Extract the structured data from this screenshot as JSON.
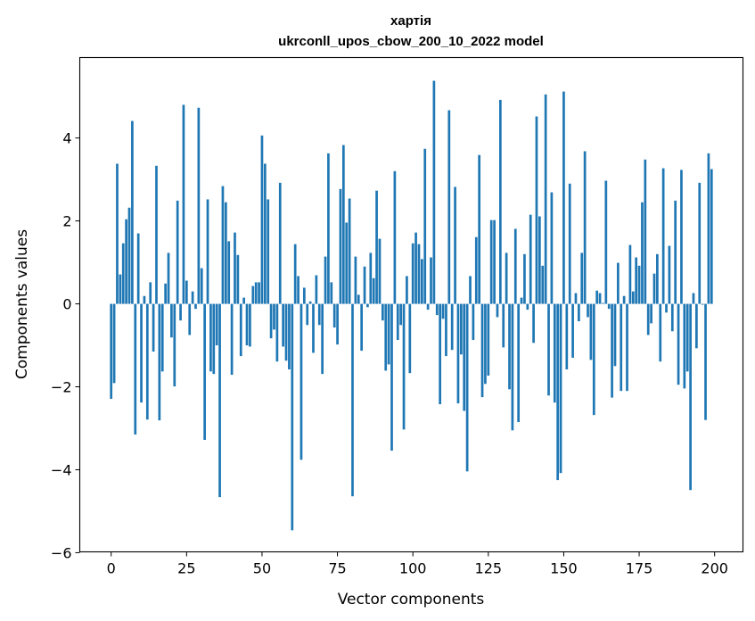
{
  "chart_data": {
    "type": "bar",
    "title": "хартія",
    "subtitle": "ukrconll_upos_cbow_200_10_2022 model",
    "xlabel": "Vector components",
    "ylabel": "Components values",
    "xlim": [
      -10.4,
      209.4
    ],
    "ylim": [
      -5.98,
      5.94
    ],
    "xticks": [
      0,
      25,
      50,
      75,
      100,
      125,
      150,
      175,
      200
    ],
    "yticks": [
      -6,
      -4,
      -2,
      0,
      2,
      4
    ],
    "xtick_labels": [
      "0",
      "25",
      "50",
      "75",
      "100",
      "125",
      "150",
      "175",
      "200"
    ],
    "ytick_labels": [
      "−6",
      "−4",
      "−2",
      "0",
      "2",
      "4"
    ],
    "grid": false,
    "bar_color": "#1f77b4",
    "values": [
      -2.29,
      -1.91,
      3.38,
      0.71,
      1.46,
      2.04,
      2.32,
      4.41,
      -3.15,
      1.7,
      -2.38,
      0.19,
      -2.79,
      0.52,
      -1.15,
      3.33,
      -2.81,
      -1.63,
      0.49,
      1.23,
      -0.81,
      -1.99,
      2.49,
      -0.4,
      4.8,
      0.56,
      -0.75,
      0.3,
      -0.12,
      4.73,
      0.86,
      -3.28,
      2.52,
      -1.63,
      -1.69,
      -1.0,
      -4.66,
      2.84,
      2.45,
      1.51,
      -1.71,
      1.72,
      1.18,
      -1.26,
      0.15,
      -1.0,
      -1.03,
      0.43,
      0.52,
      0.52,
      4.06,
      3.38,
      2.52,
      -0.83,
      -0.62,
      -1.39,
      2.92,
      -1.03,
      -1.37,
      -1.58,
      -5.46,
      1.44,
      0.67,
      -3.76,
      0.39,
      -0.51,
      0.06,
      -1.18,
      0.69,
      -0.51,
      -1.69,
      1.14,
      3.63,
      0.52,
      -0.57,
      -0.98,
      2.77,
      3.83,
      1.96,
      2.54,
      -4.64,
      1.14,
      0.22,
      -1.13,
      0.9,
      -0.08,
      1.23,
      0.62,
      2.73,
      1.57,
      -0.4,
      -1.61,
      -1.46,
      -3.54,
      3.2,
      -0.87,
      -0.51,
      -3.03,
      0.67,
      -1.67,
      1.46,
      1.72,
      1.44,
      1.08,
      3.74,
      -0.14,
      1.12,
      5.38,
      -0.27,
      -2.42,
      -0.36,
      -1.26,
      4.67,
      -1.11,
      2.82,
      -2.4,
      -1.22,
      -2.58,
      -4.04,
      0.67,
      -0.87,
      1.61,
      3.59,
      -2.25,
      -1.93,
      -1.73,
      2.02,
      2.02,
      -0.32,
      4.92,
      -1.05,
      1.23,
      -2.06,
      -3.05,
      1.81,
      -2.85,
      0.15,
      1.2,
      -0.14,
      2.15,
      -0.94,
      4.52,
      2.11,
      0.92,
      5.05,
      -2.21,
      2.69,
      -2.38,
      -4.25,
      -4.08,
      5.12,
      -1.58,
      2.9,
      -1.3,
      0.26,
      -0.42,
      1.23,
      3.68,
      -0.32,
      -1.35,
      -2.68,
      0.32,
      0.26,
      0.02,
      2.97,
      -0.12,
      -2.26,
      -1.5,
      0.99,
      -2.1,
      0.19,
      -2.1,
      1.42,
      0.3,
      1.12,
      0.92,
      2.45,
      3.48,
      -0.75,
      -0.47,
      0.73,
      1.2,
      -1.39,
      3.27,
      -0.21,
      1.4,
      -0.66,
      2.49,
      -1.95,
      3.23,
      -2.04,
      -1.63,
      -4.49,
      0.26,
      -1.07,
      2.92,
      -0.02,
      -2.8,
      3.63,
      3.25
    ]
  }
}
